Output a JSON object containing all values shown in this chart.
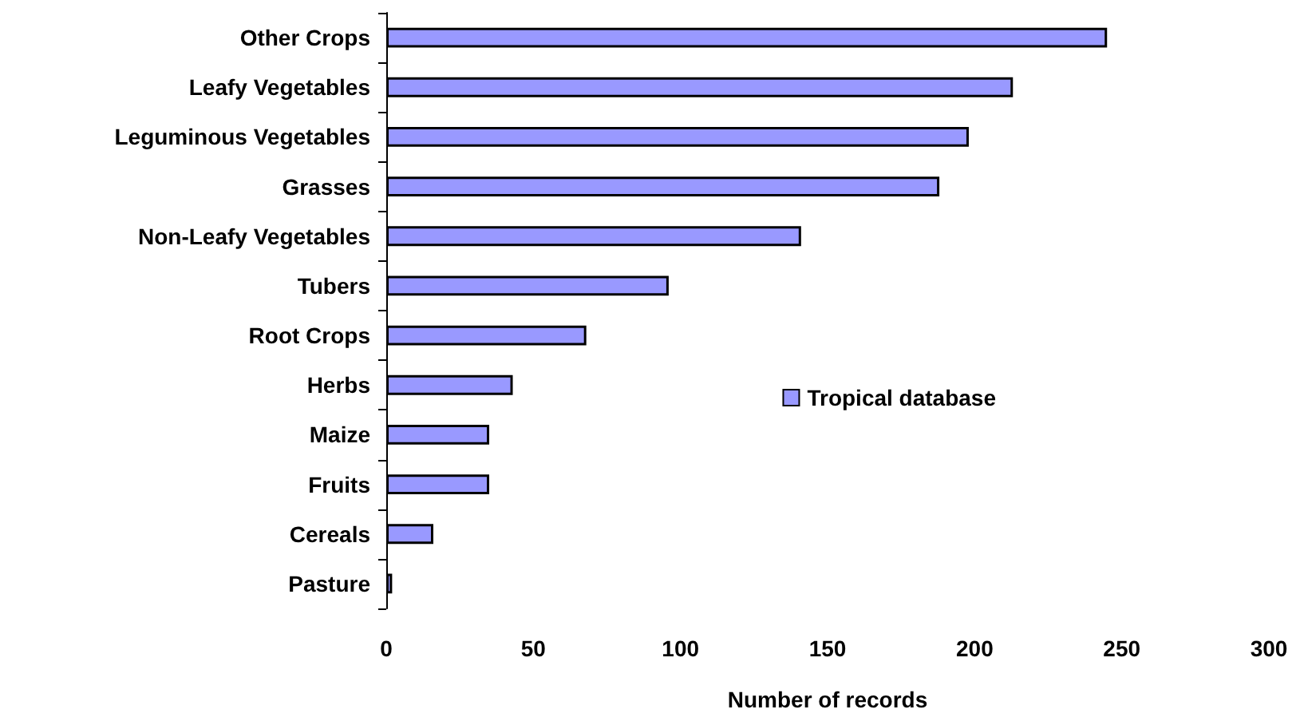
{
  "chart_data": {
    "type": "bar",
    "orientation": "horizontal",
    "xlabel": "Number of records",
    "categories": [
      "Other Crops",
      "Leafy Vegetables",
      "Leguminous Vegetables",
      "Grasses",
      "Non-Leafy Vegetables",
      "Tubers",
      "Root Crops",
      "Herbs",
      "Maize",
      "Fruits",
      "Cereals",
      "Pasture"
    ],
    "series": [
      {
        "name": "Tropical database",
        "color": "#9999ff",
        "values": [
          245,
          213,
          198,
          188,
          141,
          96,
          68,
          43,
          35,
          35,
          16,
          2
        ]
      }
    ],
    "xlim": [
      0,
      300
    ],
    "xticks": [
      0,
      50,
      100,
      150,
      200,
      250,
      300
    ],
    "grid": false,
    "legend": "right"
  }
}
